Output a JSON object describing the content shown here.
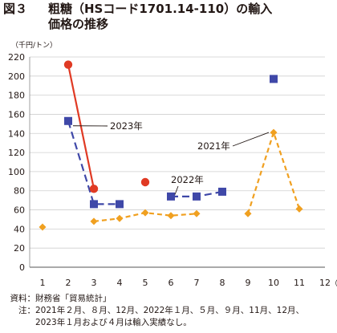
{
  "title": {
    "figure_no": "図３",
    "line1": "粗糖（HSコード1701.14-110）の輸入",
    "line2": "価格の推移"
  },
  "chart_data": {
    "type": "line",
    "unit_label": "（千円/トン）",
    "x_unit": "（月）",
    "xlim": [
      0.5,
      12
    ],
    "ylim": [
      0,
      220
    ],
    "y_ticks": [
      0,
      20,
      40,
      60,
      80,
      100,
      120,
      140,
      160,
      180,
      200,
      220
    ],
    "x_ticks": [
      "1",
      "2",
      "3",
      "4",
      "5",
      "6",
      "7",
      "8",
      "9",
      "10",
      "11",
      "12"
    ],
    "grid": true,
    "series": [
      {
        "name": "2021年",
        "color": "#f0a020",
        "marker": "diamond",
        "line_style": "dashed",
        "points": [
          [
            1,
            42
          ],
          [
            3,
            48
          ],
          [
            4,
            51
          ],
          [
            5,
            57
          ],
          [
            6,
            54
          ],
          [
            7,
            56
          ],
          [
            9,
            56
          ],
          [
            10,
            141
          ],
          [
            11,
            61
          ]
        ],
        "segments": [
          [
            3,
            4,
            5,
            6,
            7
          ],
          [
            9,
            10,
            11
          ]
        ]
      },
      {
        "name": "2022年",
        "color": "#3f48a8",
        "marker": "square",
        "line_style": "dashed",
        "points": [
          [
            2,
            153
          ],
          [
            3,
            66
          ],
          [
            4,
            66
          ],
          [
            6,
            74
          ],
          [
            7,
            74
          ],
          [
            8,
            79
          ],
          [
            10,
            197
          ]
        ],
        "segments": [
          [
            2,
            3,
            4
          ],
          [
            6,
            7,
            8
          ]
        ]
      },
      {
        "name": "2023年",
        "color": "#e03a24",
        "marker": "circle",
        "line_style": "solid",
        "points": [
          [
            2,
            212
          ],
          [
            3,
            82
          ],
          [
            5,
            89
          ]
        ],
        "segments": [
          [
            2,
            3
          ]
        ]
      }
    ],
    "annotations": [
      {
        "text": "2023年",
        "series": "2023年"
      },
      {
        "text": "2022年",
        "series": "2022年"
      },
      {
        "text": "2021年",
        "series": "2021年"
      }
    ]
  },
  "notes": {
    "source_label": "資料：",
    "source_text": "財務省「貿易統計」",
    "note_label": "注：",
    "note_line1": "2021年２月、８月、12月、2022年１月、５月、９月、11月、12月、",
    "note_line2": "2023年１月および４月は輸入実績なし。"
  }
}
